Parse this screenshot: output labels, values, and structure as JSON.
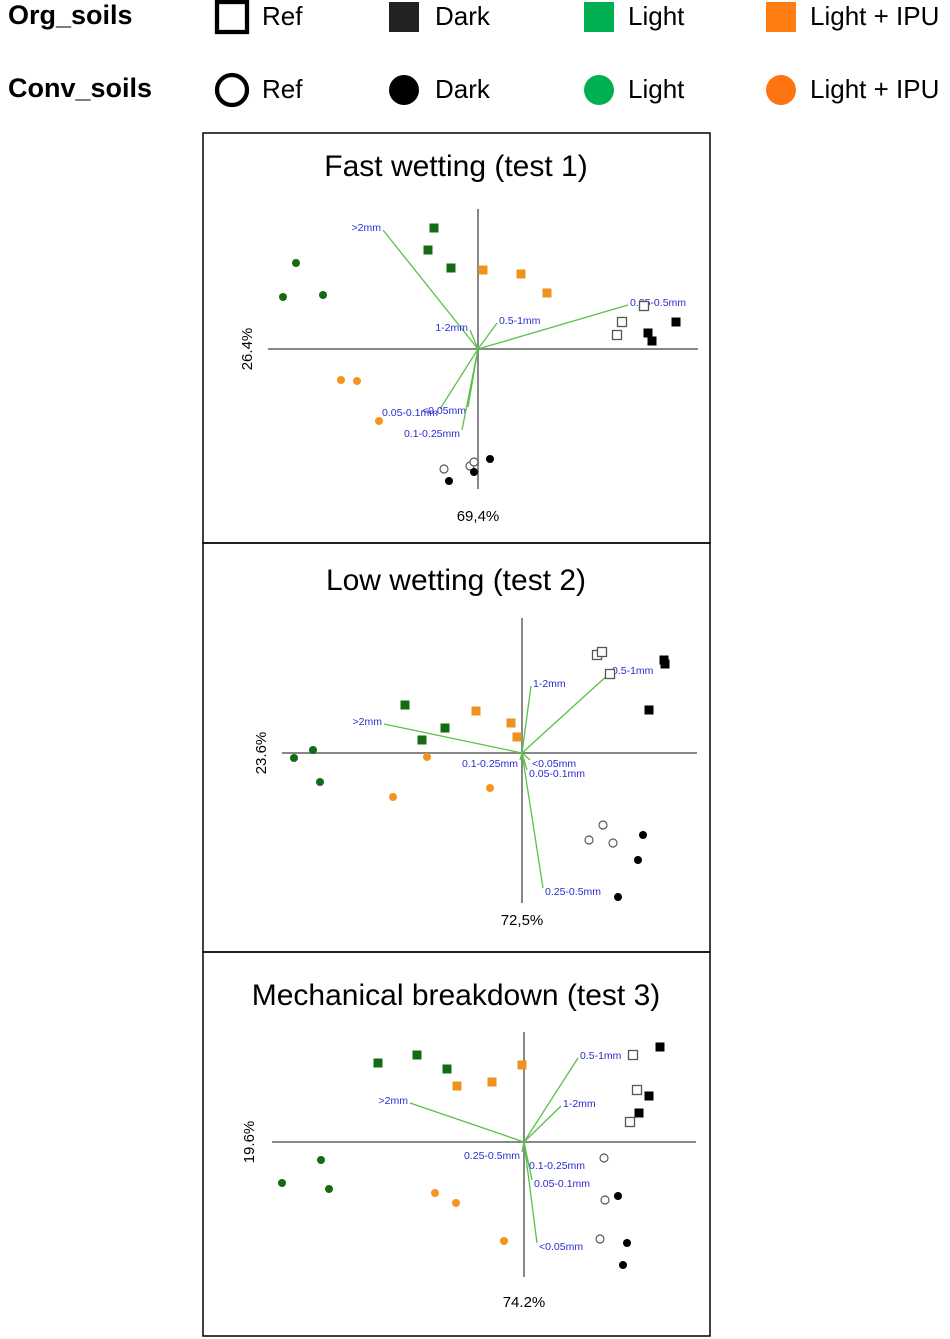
{
  "legend": {
    "groups": [
      {
        "name": "Org_soils",
        "marker": "square",
        "entries": [
          {
            "name": "Ref",
            "color": "#ffffff",
            "hollow": true
          },
          {
            "name": "Dark",
            "color": "#222222",
            "hollow": false
          },
          {
            "name": "Light",
            "color": "#00b050",
            "hollow": false
          },
          {
            "name": "Light + IPU",
            "color": "#ff7c10",
            "hollow": false
          }
        ]
      },
      {
        "name": "Conv_soils",
        "marker": "circle",
        "entries": [
          {
            "name": "Ref",
            "color": "#ffffff",
            "hollow": true
          },
          {
            "name": "Dark",
            "color": "#000000",
            "hollow": false
          },
          {
            "name": "Light",
            "color": "#00b050",
            "hollow": false
          },
          {
            "name": "Light + IPU",
            "color": "#ff7410",
            "hollow": false
          }
        ]
      }
    ]
  },
  "chart_data": [
    {
      "type": "scatter",
      "title": "Fast wetting  (test 1)",
      "x_label": "69,4%",
      "y_label": "26.4%",
      "xlim": [
        -21,
        22
      ],
      "ylim": [
        -14,
        14
      ],
      "series": [
        {
          "marker": "square",
          "color": "#555555",
          "hollow": true,
          "x": [
            16.6,
            14.4,
            13.9
          ],
          "y": [
            4.3,
            2.7,
            1.4
          ]
        },
        {
          "marker": "square",
          "color": "#000000",
          "hollow": false,
          "x": [
            19.8,
            17,
            17.4
          ],
          "y": [
            2.7,
            1.6,
            0.8
          ]
        },
        {
          "marker": "square",
          "color": "#136c13",
          "hollow": false,
          "x": [
            -4.4,
            -5,
            -2.7
          ],
          "y": [
            12.1,
            9.9,
            8.1
          ]
        },
        {
          "marker": "square",
          "color": "#f0931e",
          "hollow": false,
          "x": [
            0.5,
            4.3,
            6.9
          ],
          "y": [
            7.9,
            7.5,
            5.6
          ]
        },
        {
          "marker": "circle",
          "color": "#555555",
          "hollow": true,
          "x": [
            -3.4,
            -0.8,
            -0.4
          ],
          "y": [
            -12,
            -11.7,
            -11.3
          ]
        },
        {
          "marker": "circle",
          "color": "#000000",
          "hollow": false,
          "x": [
            -2.9,
            -0.4,
            1.2
          ],
          "y": [
            -13.2,
            -12.3,
            -11
          ]
        },
        {
          "marker": "circle",
          "color": "#136c13",
          "hollow": false,
          "x": [
            -18.2,
            -19.5,
            -15.5
          ],
          "y": [
            8.6,
            5.2,
            5.4
          ]
        },
        {
          "marker": "circle",
          "color": "#f7941d",
          "hollow": false,
          "x": [
            -13.7,
            -12.1,
            -9.9
          ],
          "y": [
            -3.1,
            -3.2,
            -7.2
          ]
        }
      ],
      "vectors": [
        {
          "label": ">2mm",
          "x": -9.5,
          "y": 11.9
        },
        {
          "label": "0.25-0.5mm",
          "x": 15,
          "y": 4.4
        },
        {
          "label": "1-2mm",
          "x": -0.8,
          "y": 1.9
        },
        {
          "label": "0.5-1mm",
          "x": 1.9,
          "y": 2.6
        },
        {
          "label": "0.05-0.1mm",
          "x": -3.8,
          "y": -6
        },
        {
          "label": "<0.05mm",
          "x": -1,
          "y": -5.8
        },
        {
          "label": "0.1-0.25mm",
          "x": -1.6,
          "y": -8.1
        }
      ]
    },
    {
      "type": "scatter",
      "title": "Low wetting  (test 2)",
      "x_label": "72,5%",
      "y_label": "23.6%",
      "xlim": [
        -24,
        17.5
      ],
      "ylim": [
        -15,
        13.5
      ],
      "series": [
        {
          "marker": "square",
          "color": "#555555",
          "hollow": true,
          "x": [
            7.5,
            8,
            8.8
          ],
          "y": [
            9.8,
            10.1,
            7.9
          ]
        },
        {
          "marker": "square",
          "color": "#000000",
          "hollow": false,
          "x": [
            14.2,
            14.3,
            12.7
          ],
          "y": [
            9.3,
            8.9,
            4.3
          ]
        },
        {
          "marker": "square",
          "color": "#136c13",
          "hollow": false,
          "x": [
            -11.7,
            -7.7,
            -10
          ],
          "y": [
            4.8,
            2.5,
            1.3
          ]
        },
        {
          "marker": "square",
          "color": "#f0931e",
          "hollow": false,
          "x": [
            -4.6,
            -1.1,
            -0.5
          ],
          "y": [
            4.2,
            3,
            1.6
          ]
        },
        {
          "marker": "circle",
          "color": "#555555",
          "hollow": true,
          "x": [
            8.1,
            6.7,
            9.1
          ],
          "y": [
            -7.2,
            -8.7,
            -9
          ]
        },
        {
          "marker": "circle",
          "color": "#000000",
          "hollow": false,
          "x": [
            12.1,
            11.6,
            9.6
          ],
          "y": [
            -8.2,
            -10.7,
            -14.4
          ]
        },
        {
          "marker": "circle",
          "color": "#136c13",
          "hollow": false,
          "x": [
            -20.9,
            -22.8,
            -20.2
          ],
          "y": [
            0.3,
            -0.5,
            -2.9
          ]
        },
        {
          "marker": "circle",
          "color": "#f7941d",
          "hollow": false,
          "x": [
            -9.5,
            -12.9,
            -3.2
          ],
          "y": [
            -0.4,
            -4.4,
            -3.5
          ]
        }
      ],
      "vectors": [
        {
          "label": ">2mm",
          "x": -13.8,
          "y": 2.9
        },
        {
          "label": "1-2mm",
          "x": 0.9,
          "y": 6.7
        },
        {
          "label": "0.5-1mm",
          "x": 8.8,
          "y": 8
        },
        {
          "label": "0.1-0.25mm",
          "x": -0.2,
          "y": -0.7
        },
        {
          "label": "<0.05mm",
          "x": 0.8,
          "y": -0.7
        },
        {
          "label": "0.05-0.1mm",
          "x": 0.5,
          "y": -1.7
        },
        {
          "label": "0.25-0.5mm",
          "x": 2.1,
          "y": -13.5
        }
      ]
    },
    {
      "type": "scatter",
      "title": "Mechanical breakdown  (test 3)",
      "x_label": "74.2%",
      "y_label": "19.6%",
      "xlim": [
        -25.2,
        17.2
      ],
      "ylim": [
        -13.5,
        11
      ],
      "series": [
        {
          "marker": "square",
          "color": "#555555",
          "hollow": true,
          "x": [
            10.9,
            11.3,
            10.6
          ],
          "y": [
            8.7,
            5.2,
            2
          ]
        },
        {
          "marker": "square",
          "color": "#000000",
          "hollow": false,
          "x": [
            13.6,
            12.5,
            11.5
          ],
          "y": [
            9.5,
            4.6,
            2.9
          ]
        },
        {
          "marker": "square",
          "color": "#136c13",
          "hollow": false,
          "x": [
            -14.6,
            -10.7,
            -7.7
          ],
          "y": [
            7.9,
            8.7,
            7.3
          ]
        },
        {
          "marker": "square",
          "color": "#f0931e",
          "hollow": false,
          "x": [
            -0.2,
            -3.2,
            -6.7
          ],
          "y": [
            7.7,
            6,
            5.6
          ]
        },
        {
          "marker": "circle",
          "color": "#555555",
          "hollow": true,
          "x": [
            8,
            8.1,
            7.6
          ],
          "y": [
            -1.6,
            -5.8,
            -9.7
          ]
        },
        {
          "marker": "circle",
          "color": "#000000",
          "hollow": false,
          "x": [
            9.4,
            10.3,
            9.9
          ],
          "y": [
            -5.4,
            -10.1,
            -12.3
          ]
        },
        {
          "marker": "circle",
          "color": "#136c13",
          "hollow": false,
          "x": [
            -20.3,
            -24.2,
            -19.5
          ],
          "y": [
            -1.8,
            -4.1,
            -4.7
          ]
        },
        {
          "marker": "circle",
          "color": "#f7941d",
          "hollow": false,
          "x": [
            -8.9,
            -6.8,
            -2
          ],
          "y": [
            -5.1,
            -6.1,
            -9.9
          ]
        }
      ],
      "vectors": [
        {
          "label": "0.5-1mm",
          "x": 5.4,
          "y": 8.4
        },
        {
          "label": "1-2mm",
          "x": 3.7,
          "y": 3.6
        },
        {
          "label": ">2mm",
          "x": -11.4,
          "y": 3.9
        },
        {
          "label": "0.25-0.5mm",
          "x": -0.2,
          "y": -1
        },
        {
          "label": "0.1-0.25mm",
          "x": 0.3,
          "y": -2
        },
        {
          "label": "0.05-0.1mm",
          "x": 0.8,
          "y": -3.8
        },
        {
          "label": "<0.05mm",
          "x": 1.3,
          "y": -10.1
        }
      ]
    }
  ]
}
